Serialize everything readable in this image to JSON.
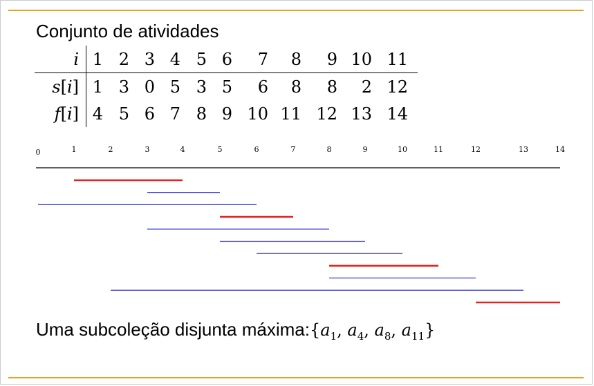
{
  "title": "Conjunto de atividades",
  "table": {
    "row_labels": [
      "i",
      "s[i]",
      "f[i]"
    ],
    "i": [
      "1",
      "2",
      "3",
      "4",
      "5",
      "6",
      "7",
      "8",
      "9",
      "10",
      "11"
    ],
    "s": [
      "1",
      "3",
      "0",
      "5",
      "3",
      "5",
      "6",
      "8",
      "8",
      "2",
      "12"
    ],
    "f": [
      "4",
      "5",
      "6",
      "7",
      "8",
      "9",
      "10",
      "11",
      "12",
      "13",
      "14"
    ]
  },
  "timeline": {
    "ticks": [
      "0",
      "1",
      "2",
      "3",
      "4",
      "5",
      "6",
      "7",
      "8",
      "9",
      "10",
      "11",
      "12",
      "13",
      "14"
    ],
    "domain": [
      0,
      14
    ],
    "intervals": [
      {
        "start": 1,
        "end": 4,
        "selected": true
      },
      {
        "start": 3,
        "end": 5,
        "selected": false
      },
      {
        "start": 0,
        "end": 6,
        "selected": false
      },
      {
        "start": 5,
        "end": 7,
        "selected": true
      },
      {
        "start": 3,
        "end": 8,
        "selected": false
      },
      {
        "start": 5,
        "end": 9,
        "selected": false
      },
      {
        "start": 6,
        "end": 10,
        "selected": false
      },
      {
        "start": 8,
        "end": 11,
        "selected": true
      },
      {
        "start": 8,
        "end": 12,
        "selected": false
      },
      {
        "start": 2,
        "end": 13,
        "selected": false
      },
      {
        "start": 12,
        "end": 14,
        "selected": true
      }
    ],
    "colors": {
      "selected": "#e8231f",
      "other": "#3a3ad6"
    }
  },
  "conclusion": {
    "text": "Uma subcoleção disjunta máxima:",
    "open": "{",
    "close": "}",
    "symbol": "a",
    "subscripts": [
      "1",
      "4",
      "8",
      "11"
    ],
    "separator": ", "
  },
  "accent_color": "#e8a020"
}
